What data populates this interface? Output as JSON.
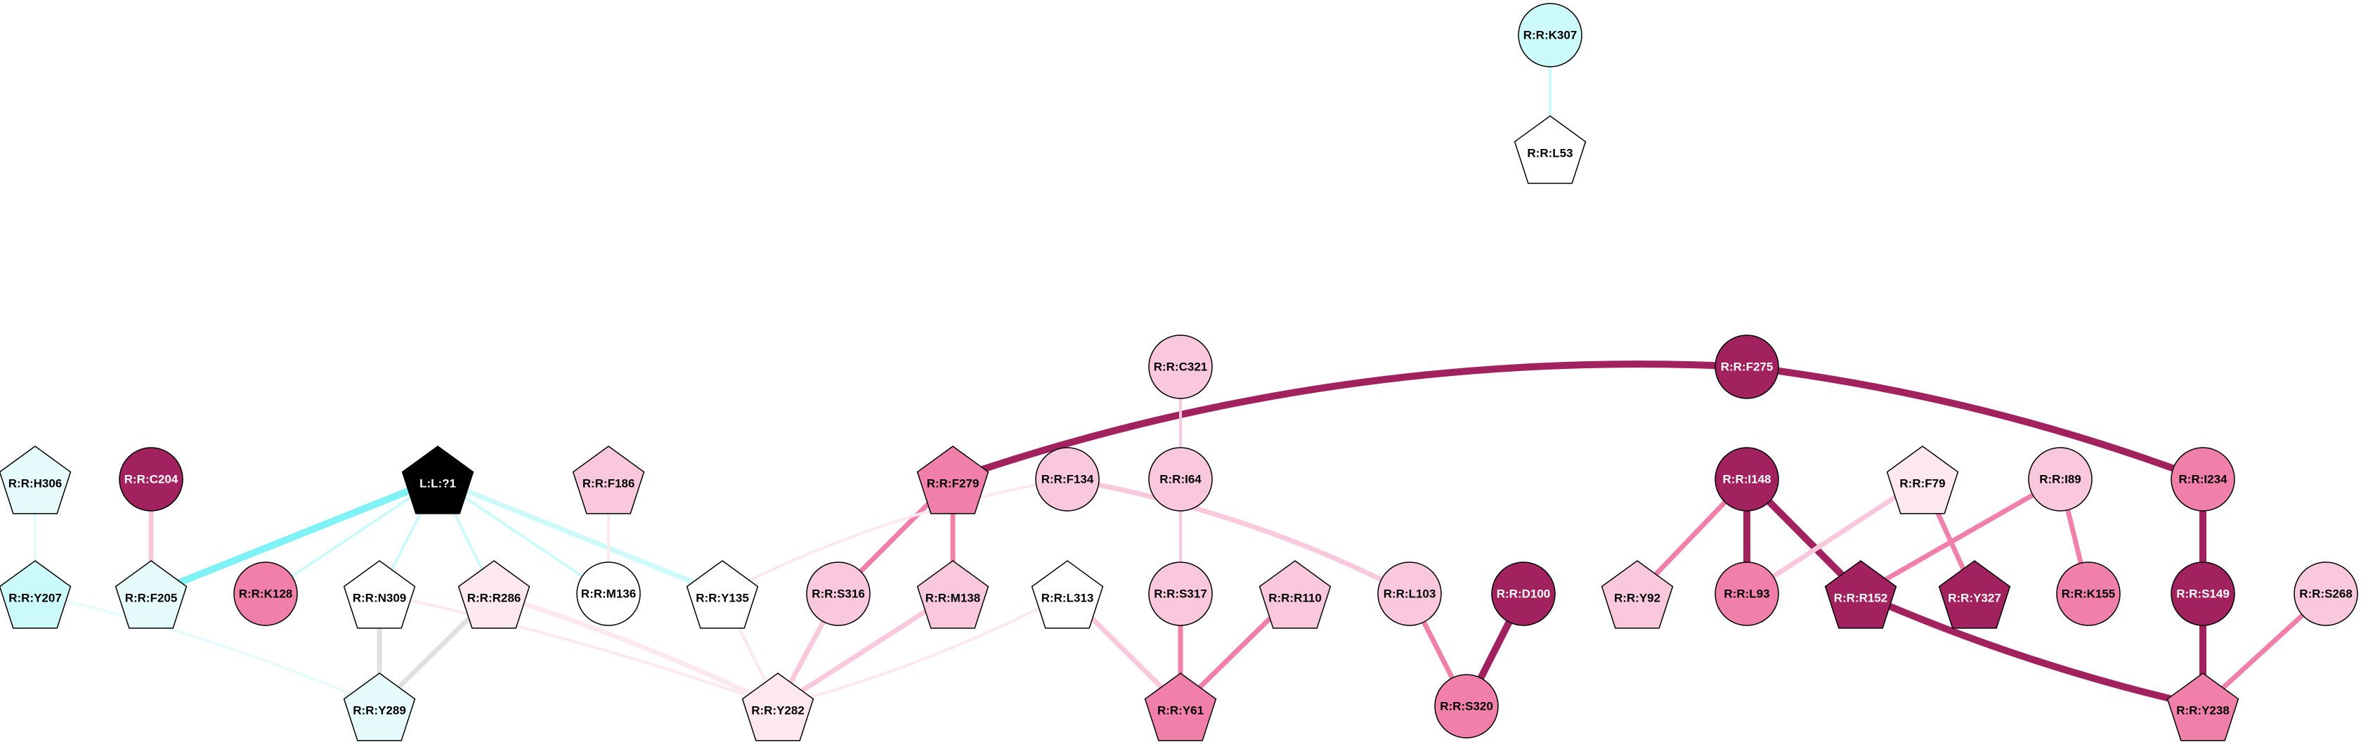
{
  "palette": {
    "dark_magenta": "#a1225f",
    "pink": "#f080aa",
    "light_pink": "#f9c8dc",
    "pale_pink": "#fde8f0",
    "white": "#ffffff",
    "pale_cyan": "#e6fbfb",
    "light_cyan": "#ccfafa",
    "cyan": "#7ff2f5",
    "grey": "#e0e0e0",
    "black": "#000000"
  },
  "nodes": [
    {
      "id": "K307",
      "label": "R:R:K307",
      "shape": "circle",
      "fill": "light_cyan"
    },
    {
      "id": "L53",
      "label": "R:R:L53",
      "shape": "pentagon",
      "fill": "white"
    },
    {
      "id": "C321",
      "label": "R:R:C321",
      "shape": "circle",
      "fill": "light_pink"
    },
    {
      "id": "F275",
      "label": "R:R:F275",
      "shape": "circle",
      "fill": "dark_magenta"
    },
    {
      "id": "H306",
      "label": "R:R:H306",
      "shape": "pentagon",
      "fill": "pale_cyan"
    },
    {
      "id": "C204",
      "label": "R:R:C204",
      "shape": "circle",
      "fill": "dark_magenta"
    },
    {
      "id": "LIG",
      "label": "L:L:?1",
      "shape": "pentagon",
      "fill": "black"
    },
    {
      "id": "F186",
      "label": "R:R:F186",
      "shape": "pentagon",
      "fill": "light_pink"
    },
    {
      "id": "F279",
      "label": "R:R:F279",
      "shape": "pentagon",
      "fill": "pink"
    },
    {
      "id": "F134",
      "label": "R:R:F134",
      "shape": "circle",
      "fill": "light_pink"
    },
    {
      "id": "I64",
      "label": "R:R:I64",
      "shape": "circle",
      "fill": "light_pink"
    },
    {
      "id": "I148",
      "label": "R:R:I148",
      "shape": "circle",
      "fill": "dark_magenta"
    },
    {
      "id": "F79",
      "label": "R:R:F79",
      "shape": "pentagon",
      "fill": "pale_pink"
    },
    {
      "id": "I89",
      "label": "R:R:I89",
      "shape": "circle",
      "fill": "light_pink"
    },
    {
      "id": "I234",
      "label": "R:R:I234",
      "shape": "circle",
      "fill": "pink"
    },
    {
      "id": "Y207",
      "label": "R:R:Y207",
      "shape": "pentagon",
      "fill": "light_cyan"
    },
    {
      "id": "F205",
      "label": "R:R:F205",
      "shape": "pentagon",
      "fill": "pale_cyan"
    },
    {
      "id": "K128",
      "label": "R:R:K128",
      "shape": "circle",
      "fill": "pink"
    },
    {
      "id": "N309",
      "label": "R:R:N309",
      "shape": "pentagon",
      "fill": "white"
    },
    {
      "id": "R286",
      "label": "R:R:R286",
      "shape": "pentagon",
      "fill": "pale_pink"
    },
    {
      "id": "M136",
      "label": "R:R:M136",
      "shape": "circle",
      "fill": "white"
    },
    {
      "id": "Y135",
      "label": "R:R:Y135",
      "shape": "pentagon",
      "fill": "white"
    },
    {
      "id": "S316",
      "label": "R:R:S316",
      "shape": "circle",
      "fill": "light_pink"
    },
    {
      "id": "M138",
      "label": "R:R:M138",
      "shape": "pentagon",
      "fill": "light_pink"
    },
    {
      "id": "L313",
      "label": "R:R:L313",
      "shape": "pentagon",
      "fill": "white"
    },
    {
      "id": "S317",
      "label": "R:R:S317",
      "shape": "circle",
      "fill": "light_pink"
    },
    {
      "id": "R110",
      "label": "R:R:R110",
      "shape": "pentagon",
      "fill": "light_pink"
    },
    {
      "id": "L103",
      "label": "R:R:L103",
      "shape": "circle",
      "fill": "light_pink"
    },
    {
      "id": "D100",
      "label": "R:R:D100",
      "shape": "circle",
      "fill": "dark_magenta"
    },
    {
      "id": "Y92",
      "label": "R:R:Y92",
      "shape": "pentagon",
      "fill": "light_pink"
    },
    {
      "id": "L93",
      "label": "R:R:L93",
      "shape": "circle",
      "fill": "pink"
    },
    {
      "id": "R152",
      "label": "R:R:R152",
      "shape": "pentagon",
      "fill": "dark_magenta"
    },
    {
      "id": "Y327",
      "label": "R:R:Y327",
      "shape": "pentagon",
      "fill": "dark_magenta"
    },
    {
      "id": "K155",
      "label": "R:R:K155",
      "shape": "circle",
      "fill": "pink"
    },
    {
      "id": "S149",
      "label": "R:R:S149",
      "shape": "circle",
      "fill": "dark_magenta"
    },
    {
      "id": "S268",
      "label": "R:R:S268",
      "shape": "circle",
      "fill": "light_pink"
    },
    {
      "id": "Y289",
      "label": "R:R:Y289",
      "shape": "pentagon",
      "fill": "pale_cyan"
    },
    {
      "id": "Y282",
      "label": "R:R:Y282",
      "shape": "pentagon",
      "fill": "pale_pink"
    },
    {
      "id": "Y61",
      "label": "R:R:Y61",
      "shape": "pentagon",
      "fill": "pink"
    },
    {
      "id": "S320",
      "label": "R:R:S320",
      "shape": "circle",
      "fill": "pink"
    },
    {
      "id": "Y238",
      "label": "R:R:Y238",
      "shape": "pentagon",
      "fill": "pink"
    }
  ],
  "edges": [
    {
      "from": "K307",
      "to": "L53",
      "color": "light_cyan",
      "weight": 1
    },
    {
      "from": "F275",
      "to": "F279",
      "color": "dark_magenta",
      "weight": 3
    },
    {
      "from": "F275",
      "to": "I234",
      "color": "dark_magenta",
      "weight": 3
    },
    {
      "from": "H306",
      "to": "Y207",
      "color": "pale_cyan",
      "weight": 1
    },
    {
      "from": "C204",
      "to": "F205",
      "color": "light_pink",
      "weight": 2
    },
    {
      "from": "LIG",
      "to": "F205",
      "color": "cyan",
      "weight": 3
    },
    {
      "from": "LIG",
      "to": "K128",
      "color": "light_cyan",
      "weight": 1
    },
    {
      "from": "LIG",
      "to": "N309",
      "color": "light_cyan",
      "weight": 1
    },
    {
      "from": "LIG",
      "to": "R286",
      "color": "light_cyan",
      "weight": 1
    },
    {
      "from": "LIG",
      "to": "M136",
      "color": "light_cyan",
      "weight": 1
    },
    {
      "from": "LIG",
      "to": "Y135",
      "color": "light_cyan",
      "weight": 2
    },
    {
      "from": "F186",
      "to": "M136",
      "color": "pale_pink",
      "weight": 1
    },
    {
      "from": "F279",
      "to": "S316",
      "color": "pink",
      "weight": 2
    },
    {
      "from": "F279",
      "to": "M138",
      "color": "pink",
      "weight": 2
    },
    {
      "from": "F134",
      "to": "Y135",
      "color": "pale_pink",
      "weight": 1
    },
    {
      "from": "F134",
      "to": "L103",
      "color": "light_pink",
      "weight": 2
    },
    {
      "from": "C321",
      "to": "I64",
      "color": "light_pink",
      "weight": 1
    },
    {
      "from": "I64",
      "to": "S317",
      "color": "light_pink",
      "weight": 1
    },
    {
      "from": "I148",
      "to": "Y92",
      "color": "pink",
      "weight": 2
    },
    {
      "from": "I148",
      "to": "L93",
      "color": "dark_magenta",
      "weight": 3
    },
    {
      "from": "I148",
      "to": "R152",
      "color": "dark_magenta",
      "weight": 3
    },
    {
      "from": "F79",
      "to": "L93",
      "color": "light_pink",
      "weight": 2
    },
    {
      "from": "F79",
      "to": "Y327",
      "color": "pink",
      "weight": 2
    },
    {
      "from": "I89",
      "to": "R152",
      "color": "pink",
      "weight": 2
    },
    {
      "from": "I89",
      "to": "K155",
      "color": "pink",
      "weight": 2
    },
    {
      "from": "I234",
      "to": "S149",
      "color": "dark_magenta",
      "weight": 3
    },
    {
      "from": "Y207",
      "to": "Y289",
      "color": "pale_cyan",
      "weight": 1
    },
    {
      "from": "N309",
      "to": "Y289",
      "color": "grey",
      "weight": 2
    },
    {
      "from": "R286",
      "to": "Y289",
      "color": "grey",
      "weight": 2
    },
    {
      "from": "N309",
      "to": "Y282",
      "color": "pale_pink",
      "weight": 1
    },
    {
      "from": "R286",
      "to": "Y282",
      "color": "pale_pink",
      "weight": 2
    },
    {
      "from": "Y135",
      "to": "Y282",
      "color": "pale_pink",
      "weight": 1
    },
    {
      "from": "S316",
      "to": "Y282",
      "color": "light_pink",
      "weight": 2
    },
    {
      "from": "M138",
      "to": "Y282",
      "color": "light_pink",
      "weight": 2
    },
    {
      "from": "L313",
      "to": "Y282",
      "color": "pale_pink",
      "weight": 1
    },
    {
      "from": "L313",
      "to": "Y61",
      "color": "light_pink",
      "weight": 2
    },
    {
      "from": "S317",
      "to": "Y61",
      "color": "pink",
      "weight": 2
    },
    {
      "from": "R110",
      "to": "Y61",
      "color": "pink",
      "weight": 2
    },
    {
      "from": "L103",
      "to": "S320",
      "color": "pink",
      "weight": 2
    },
    {
      "from": "D100",
      "to": "S320",
      "color": "dark_magenta",
      "weight": 3
    },
    {
      "from": "R152",
      "to": "Y238",
      "color": "dark_magenta",
      "weight": 3
    },
    {
      "from": "S149",
      "to": "Y238",
      "color": "dark_magenta",
      "weight": 3
    },
    {
      "from": "S268",
      "to": "Y238",
      "color": "pink",
      "weight": 2
    }
  ]
}
